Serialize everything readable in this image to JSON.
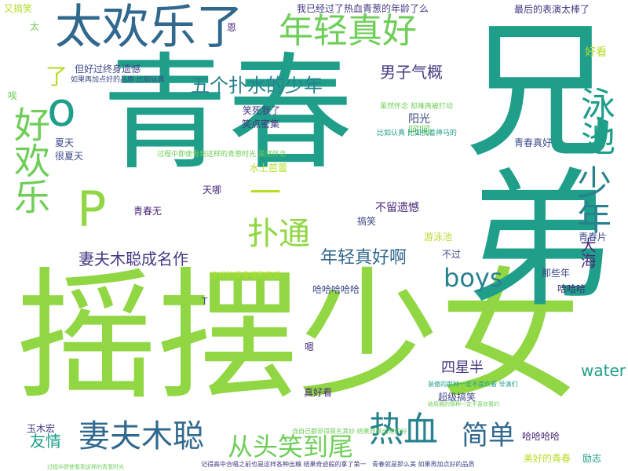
{
  "palette": {
    "dark_blue": "#31688e",
    "blue": "#26828e",
    "teal": "#1f9e89",
    "green": "#35b779",
    "light_green": "#6ece58",
    "lime": "#90d743",
    "yellow_green": "#b5de2b",
    "indigo": "#3e4989",
    "navy": "#443983",
    "purple": "#482878"
  },
  "words": [
    {
      "text": "青春",
      "color": "teal"
    },
    {
      "text": "摇摆少女",
      "color": "lime"
    },
    {
      "text": "兄弟",
      "color": "teal"
    },
    {
      "text": "太欢乐了",
      "color": "dark_blue"
    },
    {
      "text": "年轻真好",
      "color": "light_green"
    },
    {
      "text": "好欢乐",
      "color": "light_green"
    },
    {
      "text": "o",
      "color": "teal"
    },
    {
      "text": "P",
      "color": "lime"
    },
    {
      "text": "少年",
      "color": "blue"
    },
    {
      "text": "泳池",
      "color": "teal"
    },
    {
      "text": "热血",
      "color": "blue"
    },
    {
      "text": "妻夫木聪",
      "color": "dark_blue"
    },
    {
      "text": "扑通",
      "color": "lime"
    },
    {
      "text": "boys",
      "color": "blue"
    },
    {
      "text": "五个扑水的少年",
      "color": "blue"
    },
    {
      "text": "从头笑到尾",
      "color": "light_green"
    },
    {
      "text": "简单",
      "color": "dark_blue"
    },
    {
      "text": "妻夫木聪成名作",
      "color": "navy"
    },
    {
      "text": "年轻真好啊",
      "color": "dark_blue"
    },
    {
      "text": "男子气概",
      "color": "navy"
    },
    {
      "text": "了",
      "color": "yellow_green"
    },
    {
      "text": "一",
      "color": "yellow_green"
    },
    {
      "text": "大海",
      "color": "purple"
    },
    {
      "text": "water",
      "color": "teal"
    },
    {
      "text": "友情",
      "color": "teal"
    },
    {
      "text": "四星半",
      "color": "navy"
    },
    {
      "text": "我已经过了热血青葱的年龄了么",
      "color": "navy"
    },
    {
      "text": "最后的表演太棒了",
      "color": "navy"
    },
    {
      "text": "但好过终身遗憾",
      "color": "indigo"
    },
    {
      "text": "如果再加点好的品质 比如认真",
      "color": "indigo"
    },
    {
      "text": "笑死我了",
      "color": "navy"
    },
    {
      "text": "笑点密集",
      "color": "navy"
    },
    {
      "text": "阳光",
      "color": "indigo"
    },
    {
      "text": "呵呵",
      "color": "light_green"
    },
    {
      "text": "青春真好",
      "color": "indigo"
    },
    {
      "text": "好看",
      "color": "yellow_green"
    },
    {
      "text": "夏天",
      "color": "indigo"
    },
    {
      "text": "很夏天",
      "color": "indigo"
    },
    {
      "text": "水上芭蕾",
      "color": "yellow_green"
    },
    {
      "text": "天哪",
      "color": "purple"
    },
    {
      "text": "不留遗憾",
      "color": "purple"
    },
    {
      "text": "青春无",
      "color": "purple"
    },
    {
      "text": "搞笑",
      "color": "indigo"
    },
    {
      "text": "游泳池",
      "color": "yellow_green"
    },
    {
      "text": "青春片",
      "color": "indigo"
    },
    {
      "text": "不过",
      "color": "indigo"
    },
    {
      "text": "这样的青春堪称完美",
      "color": "yellow_green"
    },
    {
      "text": "那些年",
      "color": "indigo"
    },
    {
      "text": "哈哈哈哈哈",
      "color": "indigo"
    },
    {
      "text": "哈哈哈",
      "color": "purple"
    },
    {
      "text": "超级搞笑",
      "color": "indigo"
    },
    {
      "text": "真好看",
      "color": "purple"
    },
    {
      "text": "玉木宏",
      "color": "navy"
    },
    {
      "text": "哈哈哈哈",
      "color": "purple"
    },
    {
      "text": "美好的青春",
      "color": "yellow_green"
    },
    {
      "text": "励志",
      "color": "teal"
    },
    {
      "text": "恩",
      "color": "purple"
    },
    {
      "text": "嗯",
      "color": "purple"
    },
    {
      "text": "T",
      "color": "indigo"
    },
    {
      "text": "又搞笑",
      "color": "yellow_green"
    },
    {
      "text": "太",
      "color": "light_green"
    },
    {
      "text": "唉",
      "color": "light_green"
    },
    {
      "text": "过程中即使看到这样的青葱时光 虽然怀念",
      "color": "light_green"
    },
    {
      "text": "比如认真 比如执着神马的",
      "color": "teal"
    },
    {
      "text": "虽然怀念 却难再被打动",
      "color": "light_green"
    },
    {
      "text": "青春就是那么美 如果再加点好的品质",
      "color": "indigo"
    },
    {
      "text": "记得高中合唱之前也是这样各种出糗 结果奇迹般的拿了第一",
      "color": "navy"
    },
    {
      "text": "装傻的那种一定不喜欢看 导演们",
      "color": "teal"
    },
    {
      "text": "连自己都觉得莫名其妙 结果效果出奇的好",
      "color": "light_green"
    },
    {
      "text": "结局雅的那种一定不喜欢看的",
      "color": "light_green"
    },
    {
      "text": "过程中即使看到这样的青葱时光",
      "color": "light_green"
    }
  ]
}
